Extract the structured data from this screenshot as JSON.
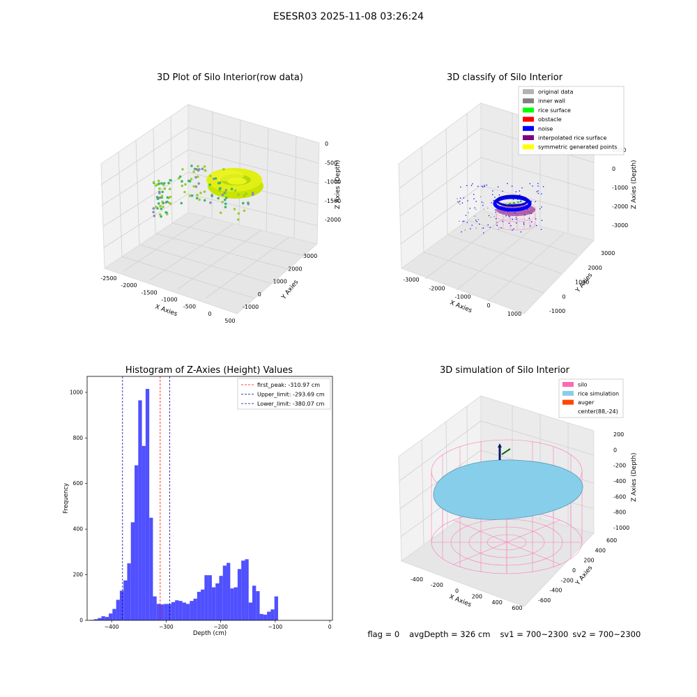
{
  "figure_title": "ESESR03 2025-11-08 03:26:24",
  "footer": {
    "flag": "flag = 0",
    "avg_depth": "avgDepth = 326 cm",
    "sv1": "sv1 = 700~2300",
    "sv2": "sv2 = 700~2300"
  },
  "chart_data": [
    {
      "type": "scatter",
      "title": "3D Plot of Silo Interior(row data)",
      "xlabel": "X Axies",
      "ylabel": "Y Axies",
      "zlabel": "Z Axies (Depth)",
      "x_ticks": [
        "-2500",
        "-2000",
        "-1500",
        "-1000",
        "-500",
        "0",
        "500"
      ],
      "y_ticks": [
        "-1000",
        "0",
        "1000",
        "2000",
        "3000"
      ],
      "z_ticks": [
        "-2000",
        "-1500",
        "-1000",
        "-500",
        "0"
      ],
      "colors": {
        "low": "#3cb371",
        "mid": "#9acd32",
        "high": "#e8f000",
        "scatter_gray": "#8a8fb0"
      }
    },
    {
      "type": "scatter",
      "title": "3D classify of Silo Interior",
      "xlabel": "X Axies",
      "ylabel": "Y Axies",
      "zlabel": "Z Axies (Depth)",
      "x_ticks": [
        "-3000",
        "-2000",
        "-1000",
        "0",
        "1000"
      ],
      "y_ticks": [
        "-1000",
        "0",
        "1000",
        "2000",
        "3000"
      ],
      "z_ticks": [
        "-3000",
        "-2000",
        "-1000",
        "0",
        "1000"
      ],
      "legend": [
        {
          "label": "original data",
          "color": "#b3b3b3"
        },
        {
          "label": "inner wall",
          "color": "#808080"
        },
        {
          "label": "rice surface",
          "color": "#00ff00"
        },
        {
          "label": "obstacle",
          "color": "#ff0000"
        },
        {
          "label": "noise",
          "color": "#0000ff"
        },
        {
          "label": "interpolated rice surface",
          "color": "#800080"
        },
        {
          "label": "symmetric generated points",
          "color": "#ffff00"
        }
      ],
      "legend_position": "top-right"
    },
    {
      "type": "bar",
      "title": "Histogram of Z-Axies (Height) Values",
      "xlabel": "Depth (cm)",
      "ylabel": "Frequency",
      "xlim": [
        -445,
        5
      ],
      "ylim": [
        0,
        1070
      ],
      "x_ticks": [
        -400,
        -300,
        -200,
        -100,
        0
      ],
      "y_ticks": [
        0,
        200,
        400,
        600,
        800,
        1000
      ],
      "bin_width": 6.75,
      "bin_start": -439,
      "values": [
        2,
        5,
        10,
        18,
        15,
        30,
        50,
        90,
        130,
        175,
        250,
        430,
        680,
        965,
        765,
        1015,
        450,
        105,
        72,
        70,
        72,
        72,
        80,
        88,
        85,
        78,
        72,
        85,
        95,
        125,
        135,
        198,
        198,
        145,
        162,
        195,
        240,
        252,
        140,
        145,
        225,
        262,
        268,
        78,
        152,
        128,
        28,
        25,
        38,
        48,
        105
      ],
      "bar_color": "#5050ff",
      "lines": [
        {
          "label": "first_peak: -310.97 cm",
          "x": -310.97,
          "color": "#ff0000"
        },
        {
          "label": "Upper_limit: -293.69 cm",
          "x": -293.69,
          "color": "#0000aa"
        },
        {
          "label": "Lower_limit: -380.07 cm",
          "x": -380.07,
          "color": "#0000aa"
        }
      ],
      "legend_position": "top-right"
    },
    {
      "type": "area",
      "title": "3D simulation of Silo Interior",
      "xlabel": "X Axies",
      "ylabel": "Y Axies",
      "zlabel": "Z Axies (Depth)",
      "x_ticks": [
        "-400",
        "-200",
        "0",
        "200",
        "400",
        "600"
      ],
      "y_ticks": [
        "-600",
        "-400",
        "-200",
        "0",
        "200",
        "400",
        "600"
      ],
      "z_ticks": [
        "200",
        "0",
        "-200",
        "-400",
        "-600",
        "-800",
        "-1000"
      ],
      "legend": [
        {
          "label": "silo",
          "color": "#ff69b4"
        },
        {
          "label": "rice simulation",
          "color": "#87ceeb"
        },
        {
          "label": "auger",
          "color": "#ff4500"
        },
        {
          "label": "center(88,-24)",
          "color": ""
        }
      ],
      "legend_position": "top-right"
    }
  ]
}
